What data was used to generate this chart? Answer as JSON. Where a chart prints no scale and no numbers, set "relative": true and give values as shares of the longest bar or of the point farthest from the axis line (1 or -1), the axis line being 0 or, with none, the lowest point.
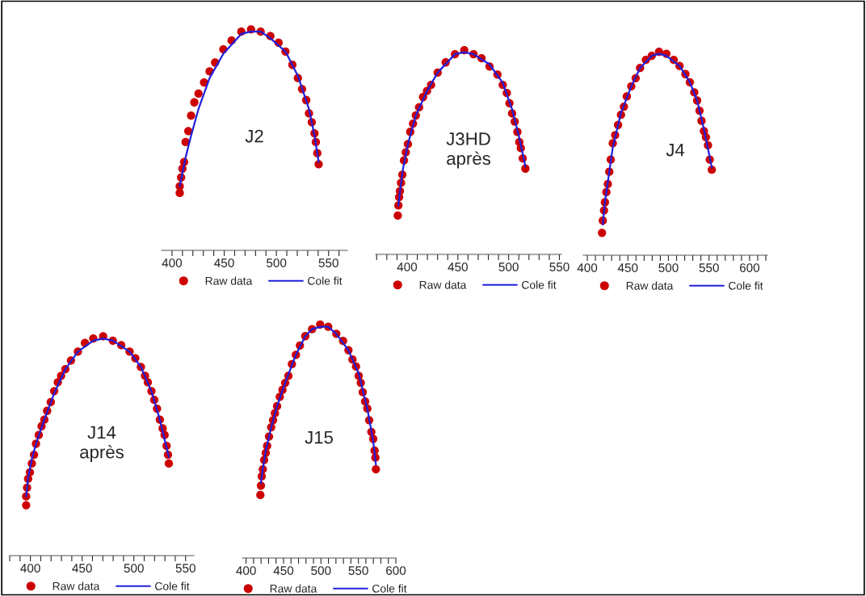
{
  "chart_data": [
    {
      "type": "line",
      "relative": true,
      "annotations": [
        "J2"
      ],
      "legend": "bottom",
      "grid": false,
      "tick_labels": "x",
      "xlim": [
        390,
        568
      ],
      "xticks": [
        400,
        {
          "value": 410,
          "label": null
        },
        {
          "value": 420,
          "label": null
        },
        {
          "value": 430,
          "label": null
        },
        {
          "value": 440,
          "label": null
        },
        450,
        {
          "value": 460,
          "label": null
        },
        {
          "value": 470,
          "label": null
        },
        {
          "value": 480,
          "label": null
        },
        {
          "value": 490,
          "label": null
        },
        500,
        {
          "value": 510,
          "label": null
        },
        {
          "value": 520,
          "label": null
        },
        {
          "value": 530,
          "label": null
        },
        {
          "value": 540,
          "label": null
        },
        550,
        {
          "value": 560,
          "label": null
        }
      ],
      "series": [
        {
          "name": "Raw data",
          "type": "scatter",
          "marker": "circle",
          "color": "#cc0000",
          "x": [
            407.4,
            407.4,
            408.7,
            410,
            411.6,
            413,
            415.6,
            418.3,
            421.4,
            425.4,
            430.7,
            436,
            441.3,
            449.2,
            457.1,
            466.4,
            475.7,
            484.9,
            494.2,
            502.1,
            508.7,
            515.3,
            520.6,
            524.6,
            528.6,
            531.2,
            533.9,
            536.5,
            537.8,
            539.2,
            540.5
          ],
          "values": [
            0.26,
            0.29,
            0.33,
            0.37,
            0.4,
            0.49,
            0.54,
            0.61,
            0.67,
            0.71,
            0.76,
            0.81,
            0.85,
            0.91,
            0.95,
            0.99,
            1,
            0.99,
            0.97,
            0.94,
            0.9,
            0.84,
            0.78,
            0.73,
            0.68,
            0.62,
            0.58,
            0.53,
            0.49,
            0.44,
            0.39
          ]
        },
        {
          "name": "Cole fit",
          "color": "#2020dd",
          "x": [
            407.4,
            410,
            413,
            418.3,
            425.4,
            436,
            449.2,
            466.4,
            475.7,
            484.9,
            494.2,
            508.7,
            520.6,
            531.2,
            536.5,
            540.5
          ],
          "values": [
            0.29,
            0.35,
            0.42,
            0.52,
            0.64,
            0.78,
            0.89,
            0.98,
            0.99,
            0.99,
            0.96,
            0.9,
            0.79,
            0.64,
            0.52,
            0.4
          ]
        }
      ]
    },
    {
      "type": "line",
      "relative": true,
      "annotations": [
        "J3HD\naprès"
      ],
      "legend": "bottom",
      "grid": false,
      "tick_labels": "x",
      "xlim": [
        369,
        552
      ],
      "xticks": [
        {
          "value": 370,
          "label": null
        },
        {
          "value": 380,
          "label": null
        },
        {
          "value": 390,
          "label": null
        },
        400,
        {
          "value": 410,
          "label": null
        },
        {
          "value": 420,
          "label": null
        },
        {
          "value": 430,
          "label": null
        },
        {
          "value": 440,
          "label": null
        },
        450,
        {
          "value": 460,
          "label": null
        },
        {
          "value": 470,
          "label": null
        },
        {
          "value": 480,
          "label": null
        },
        {
          "value": 490,
          "label": null
        },
        500,
        {
          "value": 510,
          "label": null
        },
        {
          "value": 520,
          "label": null
        },
        {
          "value": 530,
          "label": null
        },
        {
          "value": 540,
          "label": null
        },
        550
      ],
      "series": [
        {
          "name": "Raw data",
          "type": "scatter",
          "marker": "circle",
          "color": "#cc0000",
          "x": [
            390.8,
            391.4,
            392.1,
            392.9,
            394,
            395.3,
            396.9,
            398.7,
            400.8,
            403.1,
            405.8,
            408.6,
            411.8,
            415.7,
            419.6,
            423.6,
            430.1,
            438,
            447.1,
            456.3,
            465.4,
            473.3,
            481.2,
            489,
            494.2,
            498.2,
            500.8,
            503.4,
            506,
            508.6,
            510.5,
            512,
            513.9,
            516.5
          ],
          "values": [
            0.19,
            0.24,
            0.28,
            0.31,
            0.35,
            0.39,
            0.46,
            0.5,
            0.54,
            0.6,
            0.64,
            0.68,
            0.72,
            0.77,
            0.8,
            0.83,
            0.89,
            0.94,
            0.98,
            1,
            0.98,
            0.96,
            0.92,
            0.88,
            0.83,
            0.79,
            0.74,
            0.69,
            0.65,
            0.6,
            0.55,
            0.52,
            0.47,
            0.42
          ]
        },
        {
          "name": "Cole fit",
          "color": "#2020dd",
          "x": [
            391.4,
            393,
            396,
            400.8,
            408.6,
            419.6,
            430.1,
            447.1,
            456.3,
            465.4,
            481.2,
            494.2,
            503.4,
            510.5,
            516.5
          ],
          "values": [
            0.24,
            0.31,
            0.42,
            0.54,
            0.68,
            0.8,
            0.89,
            0.98,
            0.99,
            0.98,
            0.93,
            0.84,
            0.71,
            0.57,
            0.43
          ]
        }
      ]
    },
    {
      "type": "line",
      "relative": true,
      "annotations": [
        "J4"
      ],
      "legend": "bottom",
      "grid": false,
      "tick_labels": "x",
      "xlim": [
        395,
        622
      ],
      "xticks": [
        400,
        {
          "value": 410,
          "label": null
        },
        {
          "value": 420,
          "label": null
        },
        {
          "value": 430,
          "label": null
        },
        {
          "value": 440,
          "label": null
        },
        450,
        {
          "value": 460,
          "label": null
        },
        {
          "value": 470,
          "label": null
        },
        {
          "value": 480,
          "label": null
        },
        {
          "value": 490,
          "label": null
        },
        500,
        {
          "value": 510,
          "label": null
        },
        {
          "value": 520,
          "label": null
        },
        {
          "value": 530,
          "label": null
        },
        {
          "value": 540,
          "label": null
        },
        550,
        {
          "value": 560,
          "label": null
        },
        {
          "value": 570,
          "label": null
        },
        {
          "value": 580,
          "label": null
        },
        {
          "value": 590,
          "label": null
        },
        600,
        {
          "value": 610,
          "label": null
        },
        {
          "value": 620,
          "label": null
        }
      ],
      "series": [
        {
          "name": "Raw data",
          "type": "scatter",
          "marker": "circle",
          "color": "#cc0000",
          "x": [
            418.1,
            419.1,
            420.6,
            421.7,
            423.5,
            425.3,
            427.1,
            428.9,
            431.4,
            434.3,
            437.9,
            441.5,
            445.1,
            448.7,
            454.2,
            459.6,
            465,
            472.2,
            479.4,
            488.4,
            497.5,
            506.5,
            513.7,
            520.9,
            526.4,
            531.8,
            535.4,
            538.3,
            540.8,
            543.7,
            546.2,
            548.7,
            550.9,
            553.4
          ],
          "values": [
            0.11,
            0.17,
            0.22,
            0.26,
            0.31,
            0.35,
            0.41,
            0.47,
            0.55,
            0.59,
            0.64,
            0.69,
            0.73,
            0.78,
            0.83,
            0.87,
            0.92,
            0.96,
            0.98,
            1,
            0.99,
            0.96,
            0.93,
            0.89,
            0.85,
            0.8,
            0.76,
            0.71,
            0.66,
            0.61,
            0.58,
            0.54,
            0.47,
            0.42
          ]
        },
        {
          "name": "Cole fit",
          "color": "#2020dd",
          "x": [
            419.1,
            421.7,
            425.3,
            431.4,
            441.5,
            454.2,
            465,
            479.4,
            488.4,
            497.5,
            513.7,
            526.4,
            535.4,
            543.7,
            550.9,
            553.4
          ],
          "values": [
            0.15,
            0.26,
            0.36,
            0.53,
            0.7,
            0.83,
            0.92,
            0.98,
            0.99,
            0.98,
            0.93,
            0.85,
            0.76,
            0.62,
            0.48,
            0.43
          ]
        }
      ]
    },
    {
      "type": "line",
      "relative": true,
      "annotations": [
        "J14\naprès"
      ],
      "legend": "bottom",
      "grid": false,
      "tick_labels": "x",
      "xlim": [
        380,
        558
      ],
      "xticks": [
        {
          "value": 380,
          "label": null
        },
        {
          "value": 390,
          "label": null
        },
        400,
        {
          "value": 410,
          "label": null
        },
        {
          "value": 420,
          "label": null
        },
        {
          "value": 430,
          "label": null
        },
        {
          "value": 440,
          "label": null
        },
        450,
        {
          "value": 460,
          "label": null
        },
        {
          "value": 470,
          "label": null
        },
        {
          "value": 480,
          "label": null
        },
        {
          "value": 490,
          "label": null
        },
        500,
        {
          "value": 510,
          "label": null
        },
        {
          "value": 520,
          "label": null
        },
        {
          "value": 530,
          "label": null
        },
        {
          "value": 540,
          "label": null
        },
        550
      ],
      "series": [
        {
          "name": "Raw data",
          "type": "scatter",
          "marker": "circle",
          "color": "#cc0000",
          "x": [
            395.9,
            395.9,
            396.8,
            397.8,
            399.5,
            401.4,
            403.5,
            405.4,
            408.1,
            410.8,
            413.5,
            416.2,
            419.7,
            423,
            426.5,
            429.7,
            433.8,
            439.2,
            445.9,
            452.7,
            460.8,
            470.3,
            479.7,
            487.8,
            495.9,
            501.4,
            506.8,
            510.8,
            513.5,
            517,
            519.7,
            522.4,
            525.1,
            527.8,
            529.7,
            531.6,
            533,
            533.8
          ],
          "values": [
            0.23,
            0.27,
            0.31,
            0.35,
            0.38,
            0.42,
            0.46,
            0.51,
            0.55,
            0.59,
            0.62,
            0.66,
            0.7,
            0.75,
            0.79,
            0.82,
            0.85,
            0.89,
            0.93,
            0.97,
            0.99,
            1,
            0.98,
            0.96,
            0.93,
            0.9,
            0.86,
            0.82,
            0.79,
            0.75,
            0.71,
            0.67,
            0.62,
            0.58,
            0.55,
            0.5,
            0.46,
            0.42
          ]
        },
        {
          "name": "Cole fit",
          "color": "#2020dd",
          "x": [
            395.9,
            398,
            401.4,
            405.4,
            413.5,
            423,
            433.8,
            445.9,
            460.8,
            470.3,
            479.7,
            495.9,
            506.8,
            517,
            525.1,
            533.8
          ],
          "values": [
            0.27,
            0.36,
            0.44,
            0.51,
            0.62,
            0.74,
            0.85,
            0.93,
            0.98,
            0.99,
            0.98,
            0.93,
            0.86,
            0.75,
            0.62,
            0.45
          ]
        }
      ]
    },
    {
      "type": "line",
      "relative": true,
      "annotations": [
        "J15"
      ],
      "legend": "bottom",
      "grid": false,
      "tick_labels": "x",
      "xlim": [
        395,
        600
      ],
      "xticks": [
        400,
        {
          "value": 410,
          "label": null
        },
        {
          "value": 420,
          "label": null
        },
        {
          "value": 430,
          "label": null
        },
        {
          "value": 440,
          "label": null
        },
        450,
        {
          "value": 460,
          "label": null
        },
        {
          "value": 470,
          "label": null
        },
        {
          "value": 480,
          "label": null
        },
        {
          "value": 490,
          "label": null
        },
        500,
        {
          "value": 510,
          "label": null
        },
        {
          "value": 520,
          "label": null
        },
        {
          "value": 530,
          "label": null
        },
        {
          "value": 540,
          "label": null
        },
        550,
        {
          "value": 560,
          "label": null
        },
        {
          "value": 570,
          "label": null
        },
        {
          "value": 580,
          "label": null
        },
        {
          "value": 590,
          "label": null
        },
        600
      ],
      "series": [
        {
          "name": "Raw data",
          "type": "scatter",
          "marker": "circle",
          "color": "#cc0000",
          "x": [
            419.1,
            419.8,
            420.9,
            422.3,
            424.1,
            426.3,
            428.1,
            430.6,
            433.5,
            436,
            438.5,
            441.4,
            445,
            448.6,
            452.2,
            456.5,
            461.2,
            466.5,
            471.9,
            479.1,
            488.1,
            498.9,
            509.7,
            520.5,
            529.5,
            536.7,
            542.1,
            546.8,
            550.4,
            553.2,
            555.8,
            559,
            561.9,
            564.4,
            567.3,
            569.8,
            571.6,
            572.7,
            573.4
          ],
          "values": [
            0.27,
            0.31,
            0.35,
            0.38,
            0.42,
            0.45,
            0.48,
            0.52,
            0.56,
            0.59,
            0.62,
            0.65,
            0.69,
            0.72,
            0.75,
            0.78,
            0.83,
            0.87,
            0.91,
            0.95,
            0.98,
            1,
            0.99,
            0.96,
            0.93,
            0.89,
            0.85,
            0.82,
            0.78,
            0.75,
            0.71,
            0.67,
            0.64,
            0.59,
            0.54,
            0.51,
            0.46,
            0.43,
            0.38
          ]
        },
        {
          "name": "Cole fit",
          "color": "#2020dd",
          "x": [
            419.8,
            422.3,
            426.3,
            433.5,
            441.4,
            452.2,
            466.5,
            479.1,
            488.1,
            498.9,
            509.7,
            520.5,
            536.7,
            550.4,
            561.9,
            569.8,
            573.4
          ],
          "values": [
            0.32,
            0.38,
            0.46,
            0.56,
            0.65,
            0.75,
            0.87,
            0.95,
            0.98,
            0.99,
            0.99,
            0.96,
            0.89,
            0.79,
            0.64,
            0.5,
            0.4
          ]
        }
      ]
    }
  ]
}
